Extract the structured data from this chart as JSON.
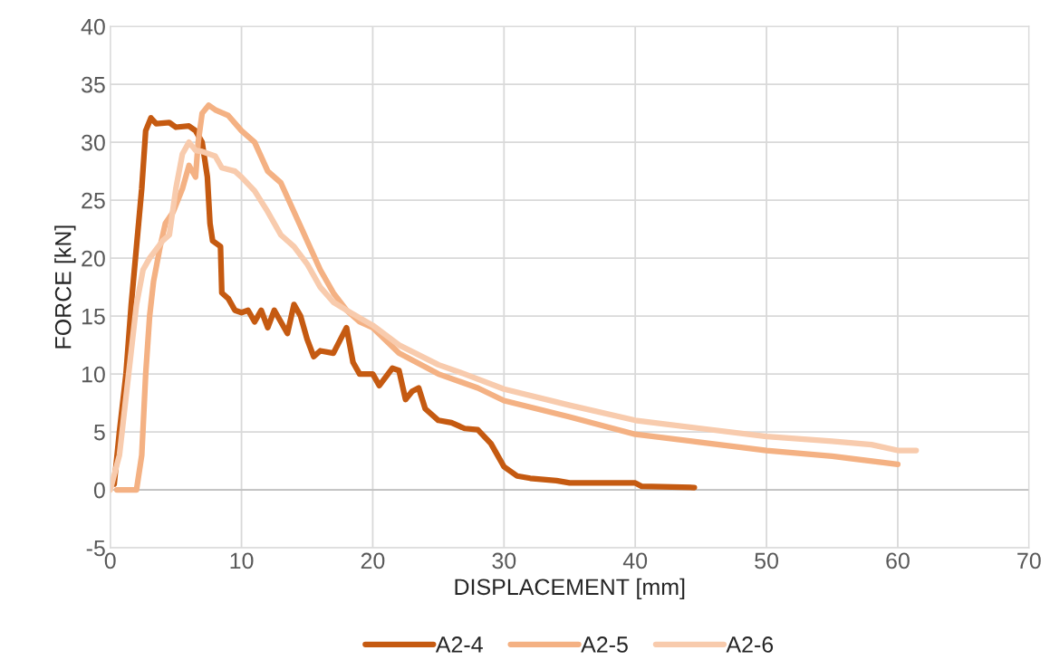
{
  "chart_data": {
    "type": "line",
    "xlabel": "DISPLACEMENT [mm]",
    "ylabel": "FORCE [kN]",
    "xlim": [
      0,
      70
    ],
    "xticks": [
      0,
      10,
      20,
      30,
      40,
      50,
      60,
      70
    ],
    "ylim": [
      -5,
      40
    ],
    "yticks": [
      -5,
      0,
      5,
      10,
      15,
      20,
      25,
      30,
      35,
      40
    ],
    "grid": true,
    "legend": "bottom",
    "marker": "none",
    "line_style": "solid",
    "series": [
      {
        "name": "A2-4",
        "color": "#c55a11",
        "x": [
          0.3,
          0.7,
          1.2,
          1.6,
          2,
          2.4,
          2.7,
          3.1,
          3.5,
          4.5,
          5,
          6,
          6.5,
          7,
          7.4,
          7.6,
          7.8,
          8.4,
          8.5,
          9,
          9.5,
          10,
          10.5,
          11,
          11.5,
          12,
          12.5,
          13,
          13.5,
          14,
          14.5,
          15,
          15.5,
          16,
          17,
          18,
          18.5,
          19,
          20,
          20.5,
          21.5,
          22,
          22.5,
          23,
          23.5,
          24,
          25,
          26,
          27,
          28,
          29,
          30,
          31,
          32,
          34,
          35,
          38,
          40,
          40.5,
          44.5
        ],
        "values": [
          0.5,
          5,
          10,
          16,
          21,
          26,
          31,
          32.1,
          31.6,
          31.7,
          31.3,
          31.4,
          31,
          30,
          27,
          23,
          21.5,
          21,
          17,
          16.5,
          15.5,
          15.3,
          15.5,
          14.5,
          15.5,
          14,
          15.5,
          14.5,
          13.5,
          16,
          15,
          13,
          11.5,
          12,
          11.8,
          14,
          11,
          10,
          10,
          9,
          10.5,
          10.3,
          7.8,
          8.5,
          8.8,
          7,
          6,
          5.8,
          5.3,
          5.2,
          4,
          2,
          1.2,
          1,
          0.8,
          0.6,
          0.6,
          0.6,
          0.3,
          0.2
        ]
      },
      {
        "name": "A2-5",
        "color": "#f4b183",
        "x": [
          0.5,
          2,
          2.4,
          2.7,
          3,
          3.3,
          3.8,
          4.2,
          4.8,
          5.5,
          6,
          6.5,
          6.7,
          7,
          7.5,
          8,
          9,
          10,
          11,
          12,
          13,
          14,
          15,
          16,
          17,
          18,
          19,
          20,
          22,
          25,
          28,
          30,
          35,
          40,
          45,
          50,
          55,
          60
        ],
        "values": [
          0,
          0,
          3,
          10,
          15,
          18,
          21,
          23,
          24,
          26,
          28,
          27,
          30,
          32.5,
          33.2,
          32.8,
          32.3,
          31,
          30,
          27.5,
          26.5,
          24,
          21.5,
          19,
          17,
          15.5,
          14.5,
          14,
          11.8,
          10,
          8.8,
          7.7,
          6.3,
          4.8,
          4.1,
          3.4,
          2.9,
          2.2
        ]
      },
      {
        "name": "A2-6",
        "color": "#f8cbad",
        "x": [
          0,
          0.7,
          1.2,
          1.7,
          2,
          2.5,
          3,
          4,
          4.5,
          5,
          5.5,
          6,
          6.5,
          7,
          8,
          8.5,
          9.5,
          10,
          11,
          12,
          13,
          14,
          15,
          16,
          17,
          18,
          20,
          22,
          25,
          27,
          30,
          35,
          40,
          45,
          50,
          55,
          58,
          60,
          61.4
        ],
        "values": [
          0,
          3,
          8,
          13,
          16,
          19,
          20,
          21.5,
          22,
          26,
          29,
          30,
          29.3,
          29.2,
          28.8,
          27.8,
          27.5,
          27,
          25.8,
          24,
          22,
          21,
          19.5,
          17.5,
          16.2,
          15.5,
          14.2,
          12.5,
          10.8,
          10,
          8.7,
          7.3,
          6,
          5.3,
          4.6,
          4.2,
          3.9,
          3.4,
          3.4
        ]
      }
    ]
  }
}
